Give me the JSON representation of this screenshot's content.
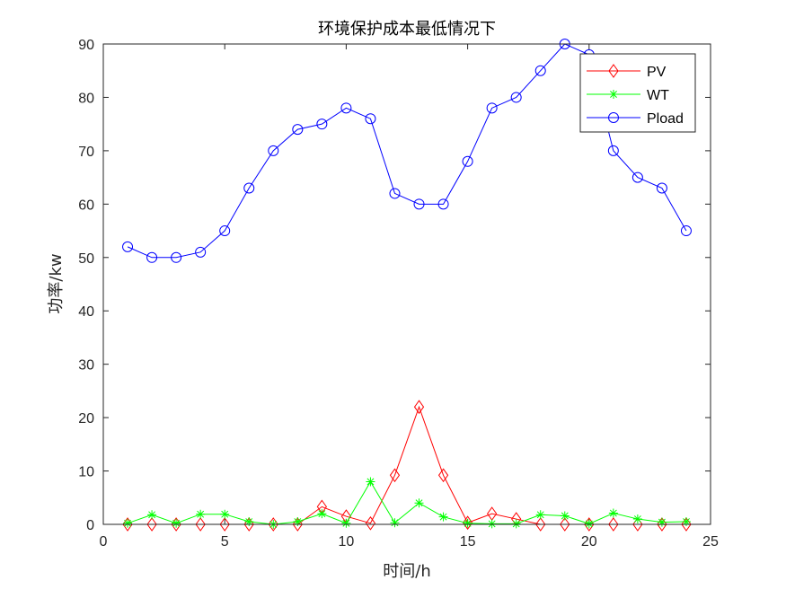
{
  "chart_data": {
    "type": "line",
    "title": "环境保护成本最低情况下",
    "xlabel": "时间/h",
    "ylabel": "功率/kw",
    "xlim": [
      0,
      25
    ],
    "ylim": [
      0,
      90
    ],
    "xticks": [
      0,
      5,
      10,
      15,
      20,
      25
    ],
    "yticks": [
      0,
      10,
      20,
      30,
      40,
      50,
      60,
      70,
      80,
      90
    ],
    "grid": false,
    "legend_position": "top-right",
    "x": [
      1,
      2,
      3,
      4,
      5,
      6,
      7,
      8,
      9,
      10,
      11,
      12,
      13,
      14,
      15,
      16,
      17,
      18,
      19,
      20,
      21,
      22,
      23,
      24
    ],
    "series": [
      {
        "name": "PV",
        "color": "#ff0000",
        "marker": "diamond",
        "values": [
          0,
          0,
          0,
          0,
          0,
          0,
          0,
          0,
          3.3,
          1.5,
          0.2,
          9.2,
          22,
          9.2,
          0.3,
          2,
          1,
          0,
          0,
          0,
          0,
          0,
          0,
          0
        ]
      },
      {
        "name": "WT",
        "color": "#00ff00",
        "marker": "asterisk",
        "values": [
          0.2,
          1.8,
          0.2,
          1.9,
          1.9,
          0.5,
          0,
          0.5,
          2,
          0.2,
          8,
          0.3,
          4,
          1.4,
          0.2,
          0.1,
          0.1,
          1.8,
          1.6,
          0.1,
          2.1,
          1,
          0.4,
          0.5
        ]
      },
      {
        "name": "Pload",
        "color": "#0000ff",
        "marker": "circle",
        "values": [
          52,
          50,
          50,
          51,
          55,
          63,
          70,
          74,
          75,
          78,
          76,
          62,
          60,
          60,
          68,
          78,
          80,
          85,
          90,
          88,
          70,
          65,
          63,
          55
        ]
      }
    ]
  }
}
